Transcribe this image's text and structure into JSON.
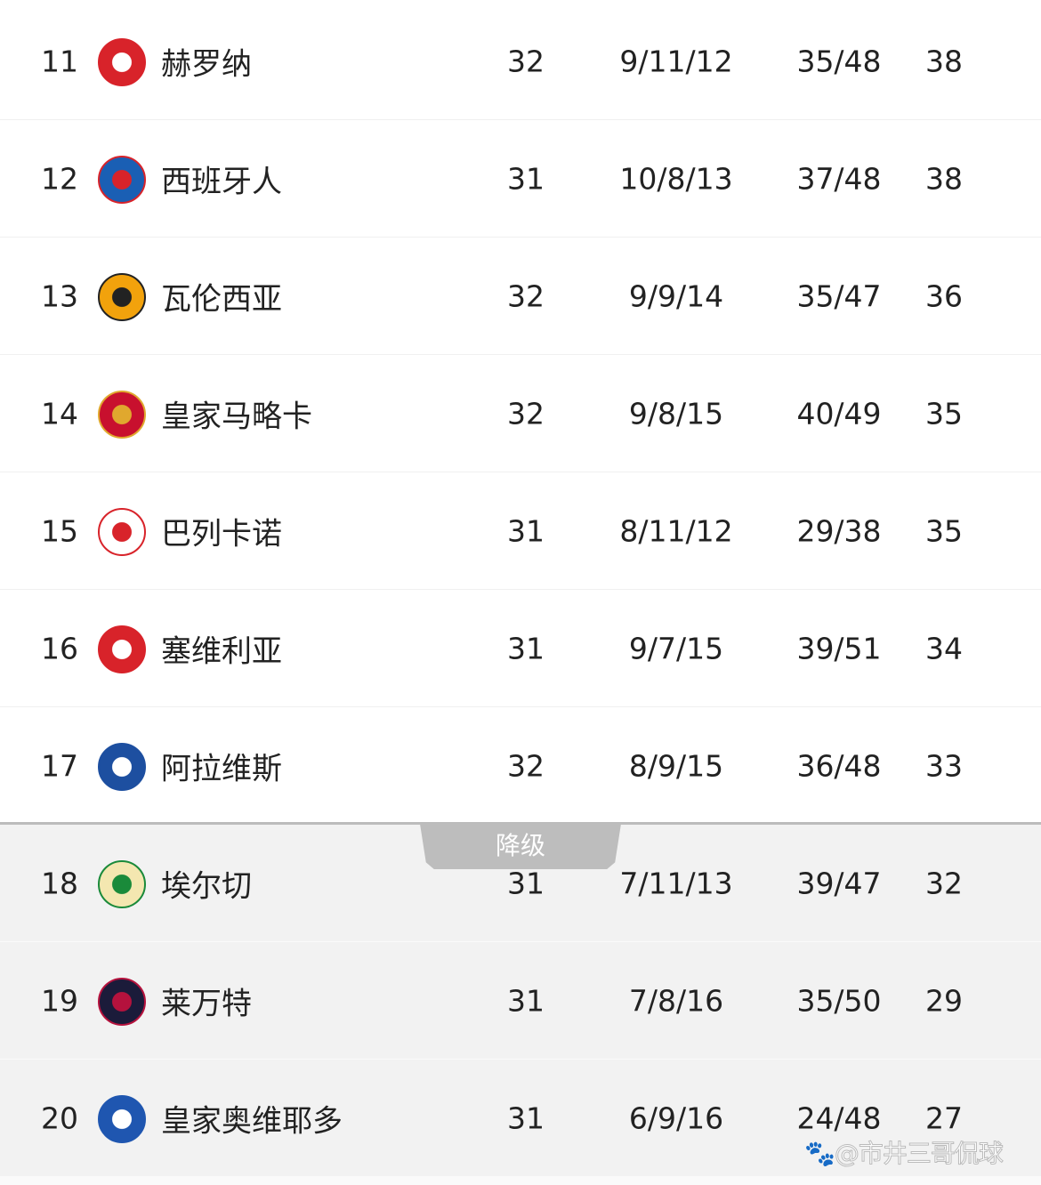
{
  "rows": [
    {
      "rank": "11",
      "team": "赫罗纳",
      "played": "32",
      "wdl": "9/11/12",
      "goals": "35/48",
      "points": "38",
      "logo_color": "#d8232a",
      "logo_alt": "#ffffff",
      "relegation": false
    },
    {
      "rank": "12",
      "team": "西班牙人",
      "played": "31",
      "wdl": "10/8/13",
      "goals": "37/48",
      "points": "38",
      "logo_color": "#1a5fb4",
      "logo_alt": "#d8232a",
      "relegation": false
    },
    {
      "rank": "13",
      "team": "瓦伦西亚",
      "played": "32",
      "wdl": "9/9/14",
      "goals": "35/47",
      "points": "36",
      "logo_color": "#f2a20c",
      "logo_alt": "#222222",
      "relegation": false
    },
    {
      "rank": "14",
      "team": "皇家马略卡",
      "played": "32",
      "wdl": "9/8/15",
      "goals": "40/49",
      "points": "35",
      "logo_color": "#c8102e",
      "logo_alt": "#e0a82e",
      "relegation": false
    },
    {
      "rank": "15",
      "team": "巴列卡诺",
      "played": "31",
      "wdl": "8/11/12",
      "goals": "29/38",
      "points": "35",
      "logo_color": "#ffffff",
      "logo_alt": "#d8232a",
      "relegation": false
    },
    {
      "rank": "16",
      "team": "塞维利亚",
      "played": "31",
      "wdl": "9/7/15",
      "goals": "39/51",
      "points": "34",
      "logo_color": "#d8232a",
      "logo_alt": "#ffffff",
      "relegation": false
    },
    {
      "rank": "17",
      "team": "阿拉维斯",
      "played": "32",
      "wdl": "8/9/15",
      "goals": "36/48",
      "points": "33",
      "logo_color": "#1d4fa0",
      "logo_alt": "#ffffff",
      "relegation": false
    },
    {
      "rank": "18",
      "team": "埃尔切",
      "played": "31",
      "wdl": "7/11/13",
      "goals": "39/47",
      "points": "32",
      "logo_color": "#f4e7b0",
      "logo_alt": "#1a8a3a",
      "relegation": true
    },
    {
      "rank": "19",
      "team": "莱万特",
      "played": "31",
      "wdl": "7/8/16",
      "goals": "35/50",
      "points": "29",
      "logo_color": "#1b1b3a",
      "logo_alt": "#b5123d",
      "relegation": true
    },
    {
      "rank": "20",
      "team": "皇家奥维耶多",
      "played": "31",
      "wdl": "6/9/16",
      "goals": "24/48",
      "points": "27",
      "logo_color": "#1f56b0",
      "logo_alt": "#ffffff",
      "relegation": true
    }
  ],
  "relegation_label": "降级",
  "watermark": "🐾@市井三哥侃球"
}
